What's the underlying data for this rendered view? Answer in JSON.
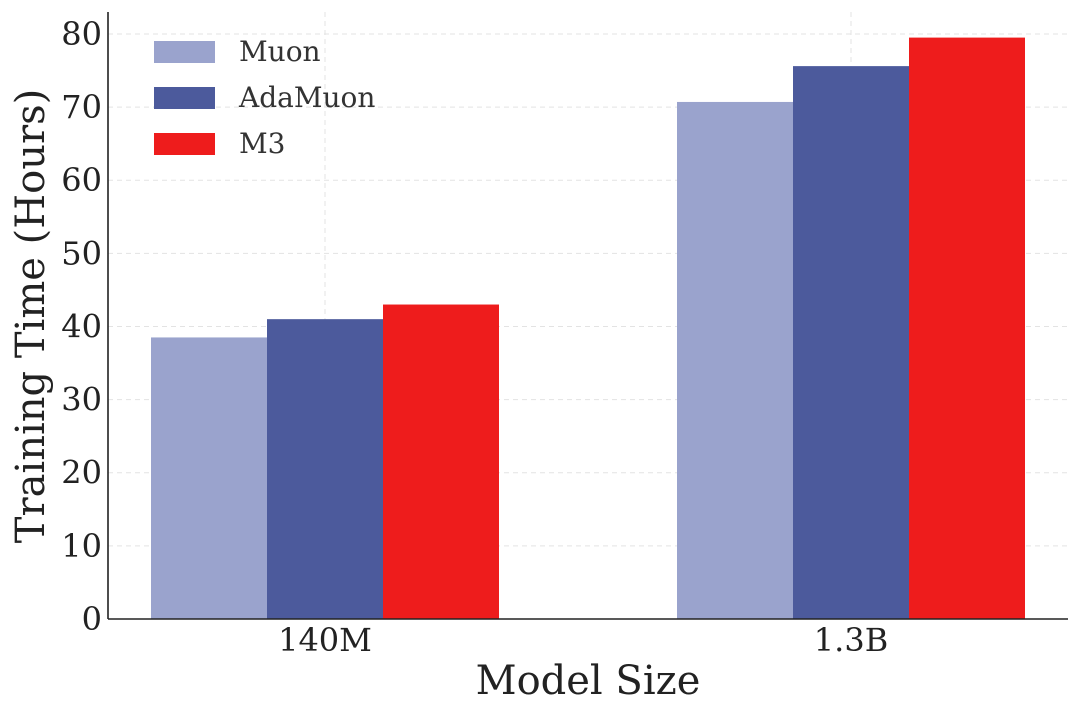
{
  "chart_data": {
    "type": "bar",
    "title": "",
    "xlabel": "Model Size",
    "ylabel": "Training Time (Hours)",
    "categories": [
      "140M",
      "1.3B"
    ],
    "series": [
      {
        "name": "Muon",
        "color": "#9aa3cd",
        "values": [
          38.5,
          70.7
        ]
      },
      {
        "name": "AdaMuon",
        "color": "#4c5a9c",
        "values": [
          41.0,
          75.6
        ]
      },
      {
        "name": "M3",
        "color": "#ee1c1c",
        "values": [
          43.0,
          79.5
        ]
      }
    ],
    "ylim": [
      0,
      83
    ],
    "yticks": [
      0,
      10,
      20,
      30,
      40,
      50,
      60,
      70,
      80
    ],
    "grid": true,
    "legend_position": "top-left"
  }
}
